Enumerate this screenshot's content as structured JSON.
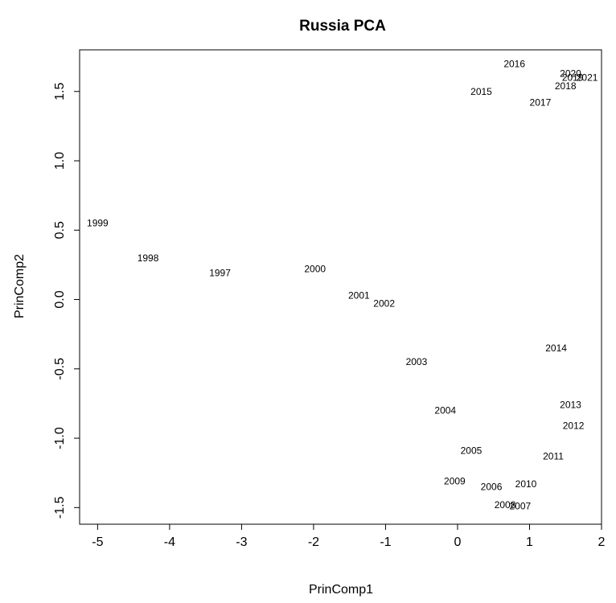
{
  "chart_data": {
    "type": "scatter",
    "title": "Russia PCA",
    "xlabel": "PrinComp1",
    "ylabel": "PrinComp2",
    "xlim": [
      -5.25,
      2.0
    ],
    "ylim": [
      -1.62,
      1.8
    ],
    "xticks": [
      -5,
      -4,
      -3,
      -2,
      -1,
      0,
      1,
      2
    ],
    "xtick_labels": [
      "-5",
      "-4",
      "-3",
      "-2",
      "-1",
      "0",
      "1",
      "2"
    ],
    "yticks": [
      -1.5,
      -1.0,
      -0.5,
      0.0,
      0.5,
      1.0,
      1.5
    ],
    "ytick_labels": [
      "-1.5",
      "-1.0",
      "-0.5",
      "0.0",
      "0.5",
      "1.0",
      "1.5"
    ],
    "grid": false,
    "legend": "none",
    "marker": "text-label",
    "points": [
      {
        "label": "1997",
        "x": -3.3,
        "y": 0.19
      },
      {
        "label": "1998",
        "x": -4.3,
        "y": 0.3
      },
      {
        "label": "1999",
        "x": -5.0,
        "y": 0.55
      },
      {
        "label": "2000",
        "x": -1.98,
        "y": 0.22
      },
      {
        "label": "2001",
        "x": -1.37,
        "y": 0.03
      },
      {
        "label": "2002",
        "x": -1.02,
        "y": -0.03
      },
      {
        "label": "2003",
        "x": -0.57,
        "y": -0.45
      },
      {
        "label": "2004",
        "x": -0.17,
        "y": -0.8
      },
      {
        "label": "2005",
        "x": 0.19,
        "y": -1.09
      },
      {
        "label": "2006",
        "x": 0.47,
        "y": -1.35
      },
      {
        "label": "2007",
        "x": 0.87,
        "y": -1.49
      },
      {
        "label": "2008",
        "x": 0.66,
        "y": -1.48
      },
      {
        "label": "2009",
        "x": -0.04,
        "y": -1.31
      },
      {
        "label": "2010",
        "x": 0.95,
        "y": -1.33
      },
      {
        "label": "2011",
        "x": 1.33,
        "y": -1.13
      },
      {
        "label": "2012",
        "x": 1.61,
        "y": -0.91
      },
      {
        "label": "2013",
        "x": 1.57,
        "y": -0.76
      },
      {
        "label": "2014",
        "x": 1.37,
        "y": -0.35
      },
      {
        "label": "2015",
        "x": 0.33,
        "y": 1.5
      },
      {
        "label": "2016",
        "x": 0.79,
        "y": 1.7
      },
      {
        "label": "2017",
        "x": 1.15,
        "y": 1.42
      },
      {
        "label": "2018",
        "x": 1.5,
        "y": 1.54
      },
      {
        "label": "2019",
        "x": 1.6,
        "y": 1.6
      },
      {
        "label": "2020",
        "x": 1.57,
        "y": 1.63
      },
      {
        "label": "2021",
        "x": 1.8,
        "y": 1.6
      }
    ]
  }
}
